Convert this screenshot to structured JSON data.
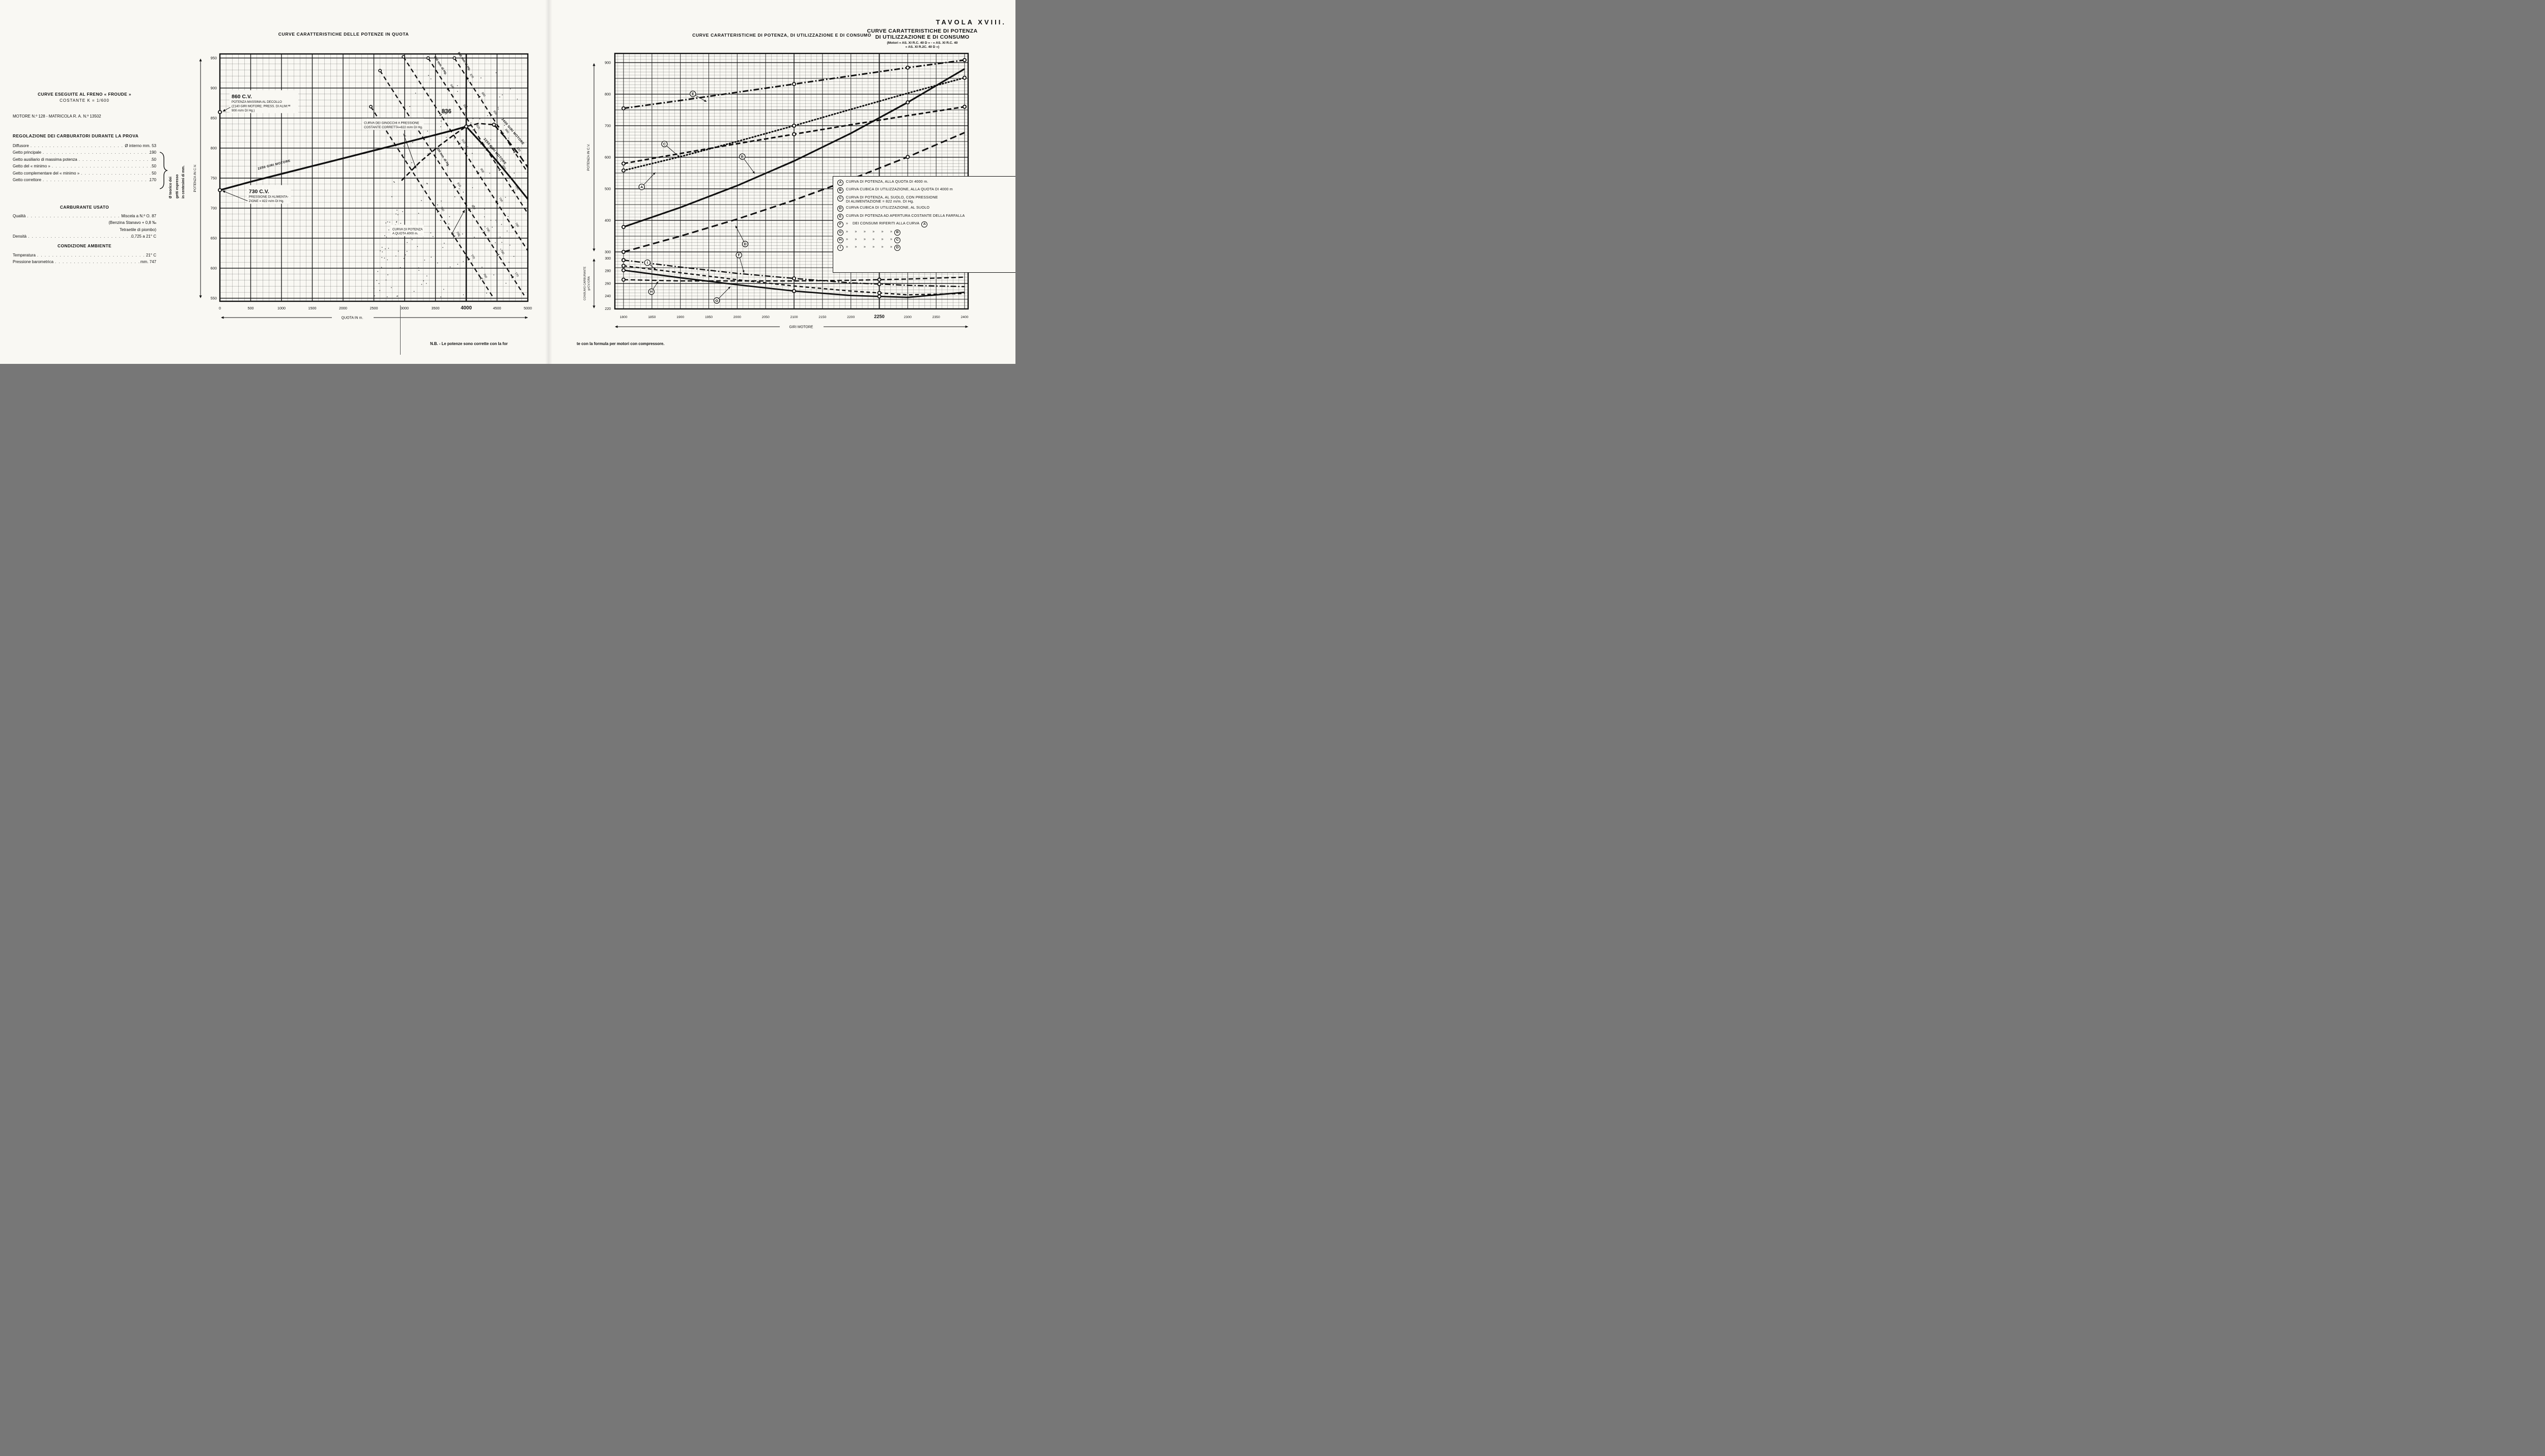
{
  "page": {
    "plate": "TAVOLA XVIII.",
    "plate_title_line1": "CURVE CARATTERISTICHE DI POTENZA",
    "plate_title_line2": "DI UTILIZZAZIONE E DI CONSUMO",
    "plate_subtitle_line1": "(Motori « AS. XI R.C. 40 D » - « AS. XI R.C. 40",
    "plate_subtitle_line2": "« AS. XI R.2C. 40 D »)",
    "note_left": "N.B. - Le potenze sono corrette con la for",
    "note_right": "te con la formula per motori con compressore."
  },
  "info_panel": {
    "test_heading": "CURVE ESEGUITE AL FRENO « FROUDE »",
    "test_constant": "COSTANTE K = 1/600",
    "engine_line": "MOTORE N.º 128 - MATRICOLA R. A. N.º 13502",
    "carb_heading": "REGOLAZIONE DEI CARBURATORI DURANTE LA PROVA",
    "carb_rows": [
      {
        "label": "Diffusore",
        "value": "Ø interno mm. 53"
      },
      {
        "label": "Getto principale",
        "value": "190"
      },
      {
        "label": "Getto ausiliario di massima potenza",
        "value": "50"
      },
      {
        "label": "Getto del « minimo »",
        "value": "50"
      },
      {
        "label": "Getto complementare del « minimo »",
        "value": "50"
      },
      {
        "label": "Getto correttore",
        "value": "170"
      }
    ],
    "carb_note_lines": [
      "Ø teorico dei",
      "getti espresso",
      "in centesimi di mm."
    ],
    "fuel_heading": "CARBURANTE USATO",
    "fuel_rows": [
      {
        "label": "Qualità",
        "value": "Miscela a N.º O. 87"
      },
      {
        "label": "",
        "value": "(Benzina Stanavo + 0,8 ‰"
      },
      {
        "label": "",
        "value": "Tetraetile di piombo)"
      },
      {
        "label": "Densità",
        "value": "0,725 a 21° C"
      }
    ],
    "ambient_heading": "CONDIZIONE AMBIENTE",
    "ambient_rows": [
      {
        "label": "Temperatura",
        "value": "21° C"
      },
      {
        "label": "Pressione barometrica",
        "value": "mm. 747"
      }
    ]
  },
  "chart_data": [
    {
      "id": "quota",
      "type": "line",
      "title": "CURVE CARATTERISTICHE DELLE POTENZE IN QUOTA",
      "xlabel": "QUOTA IN m.",
      "ylabel": "POTENZA IN C.V.",
      "xlim": [
        0,
        5000
      ],
      "ylim": [
        545,
        957
      ],
      "xticks": [
        0,
        500,
        1000,
        1500,
        2000,
        2500,
        3000,
        3500,
        4000,
        4500,
        5000
      ],
      "xtick_emphasis": 4000,
      "yticks": [
        550,
        600,
        650,
        700,
        750,
        800,
        850,
        900,
        950
      ],
      "grid": "on",
      "ref_line_x": 4000,
      "series": [
        {
          "name": "2250 GIRI MOTORE (salita in quota)",
          "style": "solid",
          "width": 3.4,
          "points": [
            [
              0,
              730
            ],
            [
              500,
              744
            ],
            [
              1000,
              757
            ],
            [
              1500,
              770
            ],
            [
              2000,
              783
            ],
            [
              2500,
              796
            ],
            [
              3000,
              809
            ],
            [
              3500,
              822
            ],
            [
              3800,
              830
            ],
            [
              4000,
              836
            ]
          ]
        },
        {
          "name": "2250 GIRI MOTORE (oltre la quota di ristabilimento)",
          "style": "solid",
          "width": 3.2,
          "points": [
            [
              4000,
              836
            ],
            [
              4250,
              808
            ],
            [
              4500,
              778
            ],
            [
              4750,
              747
            ],
            [
              5000,
              715
            ]
          ]
        },
        {
          "name": "CURVA DEI GINOCCHI A PRESSIONE COSTANTE CORRETTA 822 m/m DI Hg.",
          "style": "dash",
          "width": 2.6,
          "points": [
            [
              2950,
              746
            ],
            [
              3250,
              777
            ],
            [
              3550,
              803
            ],
            [
              3800,
              822
            ],
            [
              4000,
              836
            ],
            [
              4200,
              841
            ],
            [
              4450,
              839
            ]
          ]
        },
        {
          "name": "2400 GIRI MOTORE",
          "style": "longdash",
          "width": 2.8,
          "points": [
            [
              4450,
              839
            ],
            [
              4650,
              816
            ],
            [
              4850,
              790
            ],
            [
              5000,
              768
            ]
          ]
        }
      ],
      "markers": [
        [
          0,
          730
        ],
        [
          0,
          860
        ],
        [
          4000,
          836
        ],
        [
          4450,
          839
        ]
      ],
      "key_points": {
        "potenza_massima_decollo_cv": 860,
        "potenza_suolo_822_cv": 730,
        "potenza_quota_4000_cv": 836
      },
      "fan_lines": [
        {
          "label": "880 mm. di Hg.",
          "label_t": 0.06,
          "p1": [
            3808,
            950
          ],
          "p2": [
            5000,
            759
          ],
          "ticks": [
            [
              0.18,
              "870"
            ],
            [
              0.34,
              "860"
            ],
            [
              0.5,
              "850"
            ],
            [
              0.66,
              "840"
            ],
            [
              0.82,
              "830"
            ]
          ]
        },
        {
          "label": "850 mm. di Hg.",
          "label_t": 0.07,
          "p1": [
            3381,
            950
          ],
          "p2": [
            5000,
            691
          ],
          "ticks": [
            [
              0.2,
              "840"
            ],
            [
              0.33,
              "830"
            ],
            [
              0.46,
              "820"
            ],
            [
              0.59,
              "810"
            ],
            [
              0.72,
              "800"
            ],
            [
              0.85,
              "790"
            ]
          ]
        },
        {
          "label": "820 mm. di Hg.",
          "label_t": 0.4,
          "p1": [
            2600,
            929
          ],
          "p2": [
            4940,
            555
          ],
          "ticks": [
            [
              0.52,
              "810"
            ],
            [
              0.62,
              "800"
            ],
            [
              0.72,
              "790"
            ],
            [
              0.82,
              "780"
            ],
            [
              0.92,
              "770"
            ]
          ]
        },
        {
          "label": "",
          "label_t": 0.5,
          "p1": [
            2450,
            869
          ],
          "p2": [
            4440,
            551
          ],
          "ticks": [
            [
              0.55,
              "790"
            ],
            [
              0.68,
              "780"
            ],
            [
              0.8,
              "770"
            ],
            [
              0.9,
              "760"
            ]
          ]
        },
        {
          "label": "",
          "label_t": 0.5,
          "p1": [
            2980,
            952
          ],
          "p2": [
            5000,
            629
          ],
          "ticks": [
            [
              0.3,
              "820"
            ],
            [
              0.45,
              "810"
            ],
            [
              0.6,
              "800"
            ],
            [
              0.75,
              "790"
            ],
            [
              0.88,
              "780"
            ]
          ]
        }
      ],
      "annotations": [
        {
          "kind": "box",
          "x": 190,
          "y": 893,
          "arrow": [
            [
              170,
              868
            ],
            [
              45,
              861
            ]
          ],
          "lines": [
            [
              "860 C.V.",
              10.5,
              1
            ],
            [
              "POTENZA MASSIMA AL DECOLLO",
              6.2,
              0
            ],
            [
              "(2140 GIRI MOTORE; PRESS. DI ALIM.ᴺᴱ",
              6.2,
              0
            ],
            [
              "900 m/m DI Hg.)",
              6.2,
              0
            ]
          ]
        },
        {
          "kind": "box",
          "x": 2340,
          "y": 846,
          "arrow": [
            [
              2980,
              824
            ],
            [
              3185,
              766
            ]
          ],
          "lines": [
            [
              "CURVA DEI GINOCCHI A PRESSIONE",
              6.2,
              0
            ],
            [
              "COSTANTE CORRETTA=822 m/m DI Hg.",
              6.2,
              0
            ]
          ]
        },
        {
          "kind": "text",
          "x": 3600,
          "y": 858,
          "t": "836",
          "size": 11.5,
          "bold": 1
        },
        {
          "kind": "box",
          "x": 470,
          "y": 735,
          "arrow": [
            [
              450,
              712
            ],
            [
              40,
              729
            ]
          ],
          "lines": [
            [
              "730 C.V.",
              10.5,
              1
            ],
            [
              "PRESSIONE DI ALIMENTA-",
              6.2,
              0
            ],
            [
              "ZIONE = 822 m/m DI Hg.",
              6.2,
              0
            ]
          ]
        },
        {
          "kind": "box",
          "x": 2800,
          "y": 669,
          "arrow": [
            [
              3760,
              656
            ],
            [
              3975,
              697
            ]
          ],
          "lines": [
            [
              "CURVA DI POTENZA",
              6.2,
              0
            ],
            [
              "A QUOTA 4000 m.",
              6.2,
              0
            ]
          ]
        },
        {
          "kind": "rlabel",
          "x": 620,
          "y": 764,
          "t": "2250 GIRI MOTORE",
          "size": 6.3,
          "rot": -14
        },
        {
          "kind": "rlabel",
          "x": 4280,
          "y": 815,
          "t": "2250 GIRI MOTORE",
          "size": 6.3,
          "rot": 50
        },
        {
          "kind": "rlabel",
          "x": 4570,
          "y": 848,
          "t": "2400 GIRI MOTORE",
          "size": 6.3,
          "rot": 50
        }
      ]
    },
    {
      "id": "engine",
      "type": "line",
      "title": "CURVE CARATTERISTICHE DI POTENZA, DI UTILIZZAZIONE E DI CONSUMO",
      "xlabel": "GIRI MOTORE",
      "ylabel_power": "POTENZA IN C.V.",
      "ylabel_cons_1": "CONSUMO CARBURANTE",
      "ylabel_cons_2": "gr/CV./ORA",
      "x": [
        1800,
        1900,
        2000,
        2100,
        2200,
        2300,
        2400
      ],
      "xticks": [
        1800,
        1850,
        1900,
        1950,
        2000,
        2050,
        2100,
        2150,
        2200,
        2250,
        2300,
        2350,
        2400
      ],
      "xtick_emphasis": 2250,
      "ylim_power": [
        300,
        929
      ],
      "yticks_power": [
        300,
        400,
        500,
        600,
        700,
        800,
        900
      ],
      "ylim_cons": [
        220,
        300
      ],
      "yticks_cons": [
        220,
        240,
        260,
        280,
        300
      ],
      "grid": "on",
      "series": [
        {
          "key": "A",
          "name": "CURVA DI POTENZA, ALLA QUOTA DI 4000 m.",
          "axis": "power",
          "style": "dotted",
          "width": 3,
          "values": [
            558,
            602,
            650,
            700,
            752,
            803,
            852
          ],
          "marks": [
            1800,
            2100,
            2400
          ]
        },
        {
          "key": "B",
          "name": "CURVA CUBICA DI UTILIZZAZIONE, ALLA QUOTA DI 4000 m",
          "axis": "power",
          "style": "solid",
          "width": 3.2,
          "values": [
            379,
            441,
            510,
            588,
            676,
            774,
            880
          ],
          "marks": [
            1800,
            2300
          ]
        },
        {
          "key": "C",
          "name": "CURVA DI POTENZA, AL SUOLO, CON PRESSIONE DI ALIMENTAZIONE = 822 m/m. DI Hg.",
          "axis": "power",
          "style": "dash",
          "width": 3,
          "values": [
            580,
            612,
            643,
            673,
            703,
            732,
            760
          ],
          "marks": [
            1800,
            2100,
            2400
          ]
        },
        {
          "key": "D",
          "name": "CURVA CUBICA DI UTILIZZAZIONE, AL SUOLO",
          "axis": "power",
          "style": "longdash",
          "width": 3,
          "values": [
            300,
            350,
            404,
            464,
            530,
            601,
            678
          ],
          "marks": [
            1800,
            2300
          ]
        },
        {
          "key": "E",
          "name": "CURVA DI POTENZA AD APERTURA COSTANTE DELLA FARFALLA",
          "axis": "power",
          "style": "dashdot",
          "width": 3,
          "values": [
            755,
            780,
            806,
            832,
            858,
            884,
            908
          ],
          "marks": [
            1800,
            2100,
            2300,
            2400
          ]
        },
        {
          "key": "F",
          "name": "CURVA DEI CONSUMI RIFERITI ALLA CURVA A",
          "axis": "cons",
          "style": "dashdot",
          "width": 2.4,
          "values": [
            297,
            286,
            276,
            268,
            261,
            257,
            255
          ],
          "marks": [
            1800,
            2100,
            2250
          ]
        },
        {
          "key": "G",
          "name": "CURVA DEI CONSUMI RIFERITI ALLA CURVA B",
          "axis": "cons",
          "style": "solid",
          "width": 2.8,
          "values": [
            281,
            269,
            258,
            248,
            241,
            238,
            246
          ],
          "marks": [
            1800,
            2100,
            2250
          ]
        },
        {
          "key": "H",
          "name": "CURVA DEI CONSUMI RIFERITI ALLA CURVA C",
          "axis": "cons",
          "style": "dash",
          "width": 2.4,
          "values": [
            266,
            264,
            264,
            264,
            265,
            267,
            270
          ],
          "marks": [
            1800,
            2250
          ]
        },
        {
          "key": "I",
          "name": "CURVA DEI CONSUMI RIFERITI ALLA CURVA D",
          "axis": "cons",
          "style": "mdash",
          "width": 2.4,
          "values": [
            288,
            277,
            266,
            256,
            248,
            242,
            244
          ],
          "marks": [
            1800,
            2250
          ]
        }
      ],
      "badges": [
        {
          "l": "A",
          "r": 1832,
          "v": 506,
          "ax": "power",
          "to": [
            1856,
            552
          ]
        },
        {
          "l": "B",
          "r": 2009,
          "v": 602,
          "ax": "power",
          "to": [
            2031,
            548
          ]
        },
        {
          "l": "C",
          "r": 1872,
          "v": 642,
          "ax": "power",
          "to": [
            1899,
            600
          ]
        },
        {
          "l": "D",
          "r": 2014,
          "v": 325,
          "ax": "power",
          "to": [
            1997,
            383
          ]
        },
        {
          "l": "E",
          "r": 1922,
          "v": 801,
          "ax": "power",
          "to": [
            1946,
            776
          ]
        },
        {
          "l": "F",
          "r": 2003,
          "v": 305,
          "ax": "cons",
          "to": [
            2012,
            277
          ]
        },
        {
          "l": "G",
          "r": 1964,
          "v": 233,
          "ax": "cons",
          "to": [
            1988,
            255
          ]
        },
        {
          "l": "H",
          "r": 1849,
          "v": 247,
          "ax": "cons",
          "to": [
            1861,
            263
          ]
        },
        {
          "l": "I",
          "r": 1842,
          "v": 293,
          "ax": "cons",
          "to": [
            1857,
            282
          ]
        }
      ],
      "legend_position": "inside top-right",
      "legend": [
        {
          "k": "A",
          "t": "CURVA DI POTENZA, ALLA QUOTA DI 4000 m."
        },
        {
          "k": "B",
          "t": "CURVA CUBICA DI UTILIZZAZIONE, ALLA QUOTA DI 4000 m"
        },
        {
          "k": "C",
          "t": "CURVA DI POTENZA, AL SUOLO, CON PRESSIONE\nDI ALIMENTAZIONE = 822 m/m. DI Hg."
        },
        {
          "k": "D",
          "t": "CURVA CUBICA DI UTILIZZAZIONE, AL SUOLO"
        },
        {
          "k": "E",
          "t": "CURVA DI POTENZA AD APERTURA COSTANTE DELLA FARFALLA"
        },
        {
          "k": "F",
          "t": "»    DEI CONSUMI RIFERITI ALLA CURVA",
          "ref": "A"
        },
        {
          "k": "G",
          "t": "»      »      »      »      »      »",
          "ref": "B"
        },
        {
          "k": "H",
          "t": "»      »      »      »      »      »",
          "ref": "C"
        },
        {
          "k": "I",
          "t": "»      »      »      »      »      »",
          "ref": "D"
        }
      ]
    }
  ]
}
